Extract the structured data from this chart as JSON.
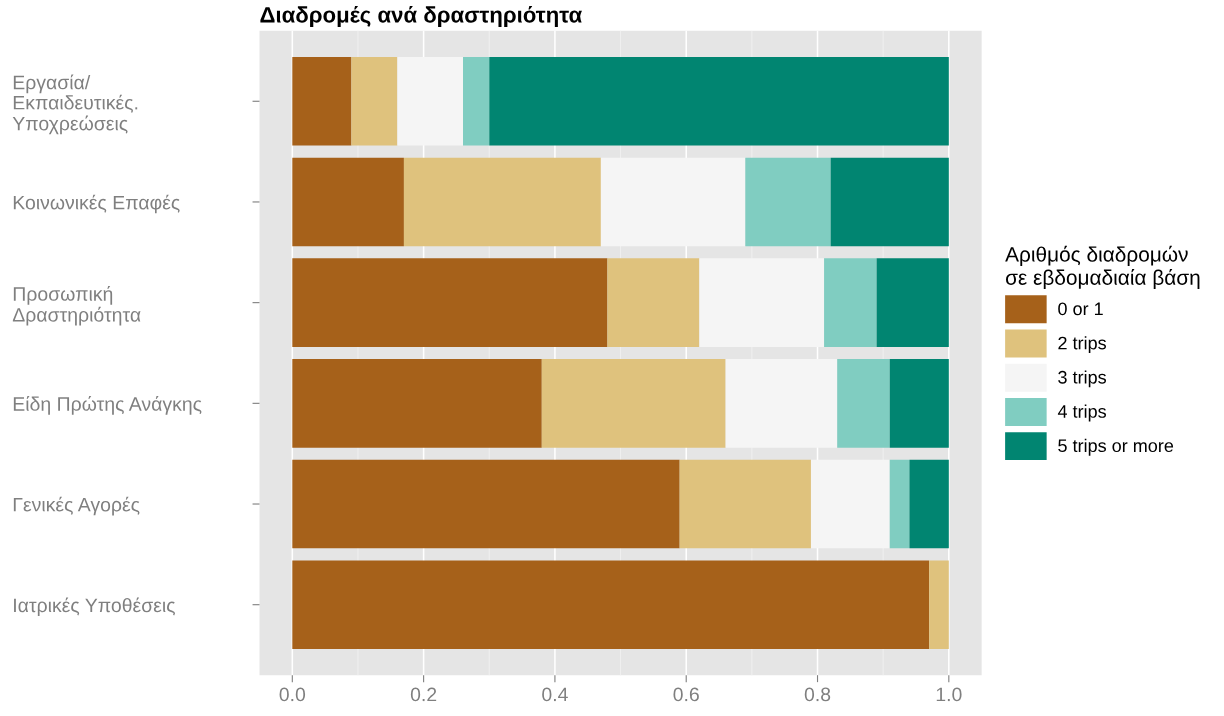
{
  "chart_data": {
    "type": "bar",
    "orientation": "horizontal",
    "stacked": true,
    "title": "Διαδρομές ανά δραστηριότητα",
    "legend_title": "Αριθμός διαδρομών\nσε εβδομαδιαία βάση",
    "categories": [
      "Εργασία/\nΕκπαιδευτικές.\nΥποχρεώσεις",
      "Κοινωνικές Επαφές",
      "Προσωπική\nΔραστηριότητα",
      "Είδη Πρώτης Ανάγκης",
      "Γενικές Αγορές",
      "Ιατρικές Υποθέσεις"
    ],
    "series": [
      {
        "name": "0 or 1",
        "color": "#a6611a",
        "values": [
          0.09,
          0.17,
          0.48,
          0.38,
          0.59,
          0.97
        ]
      },
      {
        "name": "2 trips",
        "color": "#dfc27d",
        "values": [
          0.07,
          0.3,
          0.14,
          0.28,
          0.2,
          0.03
        ]
      },
      {
        "name": "3 trips",
        "color": "#f5f5f5",
        "values": [
          0.1,
          0.22,
          0.19,
          0.17,
          0.12,
          0
        ]
      },
      {
        "name": "4 trips",
        "color": "#80cdc1",
        "values": [
          0.04,
          0.13,
          0.08,
          0.08,
          0.03,
          0
        ]
      },
      {
        "name": "5 trips or more",
        "color": "#018571",
        "values": [
          0.7,
          0.18,
          0.11,
          0.09,
          0.06,
          0
        ]
      }
    ],
    "xlim": [
      -0.05,
      1.05
    ],
    "xticks": [
      {
        "value": 0,
        "label": "0.0"
      },
      {
        "value": 0.2,
        "label": "0.2"
      },
      {
        "value": 0.4,
        "label": "0.4"
      },
      {
        "value": 0.6,
        "label": "0.6"
      },
      {
        "value": 0.8,
        "label": "0.8"
      },
      {
        "value": 1,
        "label": "1.0"
      }
    ],
    "grid": "x",
    "legend": "right"
  }
}
